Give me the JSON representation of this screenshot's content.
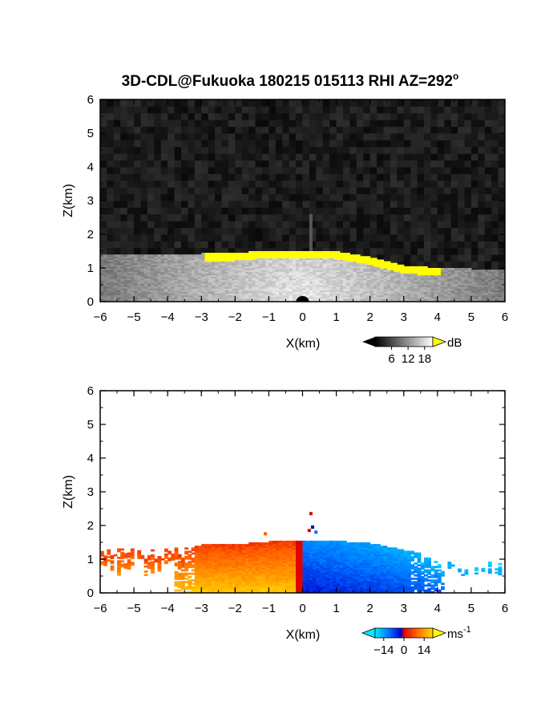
{
  "figure": {
    "title_main": "3D-CDL@Fukuoka 180215 015113 RHI AZ=292",
    "title_degree": "o"
  },
  "chart_data": [
    {
      "type": "heatmap",
      "title": "",
      "xlabel": "X(km)",
      "ylabel": "Z(km)",
      "xlim": [
        -6,
        6
      ],
      "ylim": [
        0,
        6
      ],
      "xticks": [
        "-6",
        "-5",
        "-4",
        "-3",
        "-2",
        "-1",
        "0",
        "1",
        "2",
        "3",
        "4",
        "5",
        "6"
      ],
      "yticks": [
        "0",
        "1",
        "2",
        "3",
        "4",
        "5",
        "6"
      ],
      "colorbar": {
        "unit": "dB",
        "ticks": [
          "6",
          "12",
          "18"
        ],
        "range": [
          0,
          21
        ],
        "over_color": "#ffff00"
      },
      "background": "#0a0a0a",
      "echo_top_km": [
        {
          "x": -6.0,
          "z": 1.38
        },
        {
          "x": -4.0,
          "z": 1.35
        },
        {
          "x": -3.0,
          "z": 1.4
        },
        {
          "x": -2.0,
          "z": 1.42
        },
        {
          "x": -1.0,
          "z": 1.5
        },
        {
          "x": 0.0,
          "z": 1.5
        },
        {
          "x": 1.0,
          "z": 1.47
        },
        {
          "x": 2.0,
          "z": 1.3
        },
        {
          "x": 3.0,
          "z": 1.05
        },
        {
          "x": 4.0,
          "z": 0.98
        },
        {
          "x": 5.0,
          "z": 0.95
        },
        {
          "x": 6.0,
          "z": 0.9
        }
      ],
      "saturated_band_x": [
        -3.0,
        4.0
      ]
    },
    {
      "type": "heatmap",
      "title": "",
      "xlabel": "X(km)",
      "ylabel": "Z(km)",
      "xlim": [
        -6,
        6
      ],
      "ylim": [
        0,
        6
      ],
      "xticks": [
        "-6",
        "-5",
        "-4",
        "-3",
        "-2",
        "-1",
        "0",
        "1",
        "2",
        "3",
        "4",
        "5",
        "6"
      ],
      "yticks": [
        "0",
        "1",
        "2",
        "3",
        "4",
        "5",
        "6"
      ],
      "colorbar": {
        "unit": "ms",
        "unit_exponent": "-1",
        "ticks": [
          "−14",
          "0",
          "14"
        ],
        "range": [
          -20,
          20
        ]
      },
      "background": "#ffffff",
      "velocity_sign": {
        "x_negative": "positive (away, warm colours)",
        "x_positive": "negative (toward, cool colours)"
      },
      "echo_top_km": [
        {
          "x": -6.0,
          "z": 1.38
        },
        {
          "x": -4.0,
          "z": 1.35
        },
        {
          "x": -3.0,
          "z": 1.4
        },
        {
          "x": -2.0,
          "z": 1.42
        },
        {
          "x": -1.0,
          "z": 1.5
        },
        {
          "x": 0.0,
          "z": 1.55
        },
        {
          "x": 1.0,
          "z": 1.52
        },
        {
          "x": 2.0,
          "z": 1.45
        },
        {
          "x": 3.0,
          "z": 1.25
        },
        {
          "x": 4.0,
          "z": 1.05
        },
        {
          "x": 5.0,
          "z": 0.98
        },
        {
          "x": 6.0,
          "z": 0.92
        }
      ]
    }
  ]
}
